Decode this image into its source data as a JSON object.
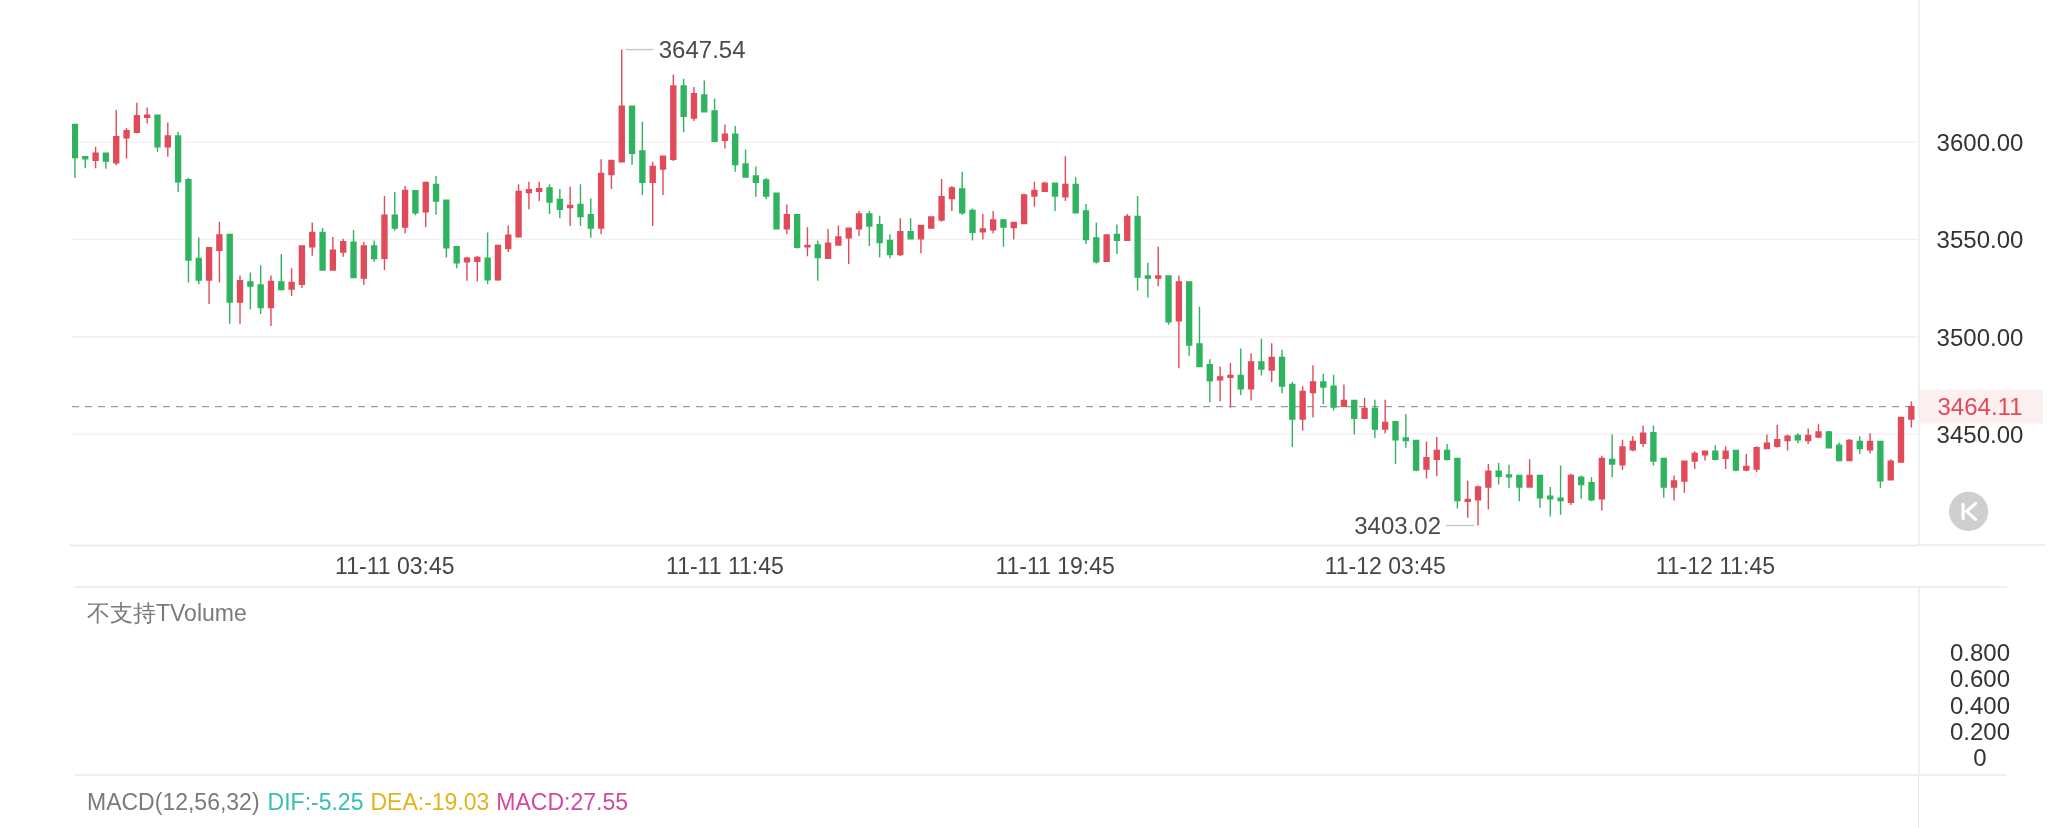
{
  "chart_data": [
    {
      "type": "candlestick",
      "categories": [
        null,
        null,
        null,
        null,
        null,
        null,
        null,
        null,
        null,
        null,
        null,
        null,
        null,
        null,
        null,
        null,
        null,
        null,
        null,
        null,
        null,
        null,
        null,
        null,
        null,
        null,
        null,
        null,
        null,
        null,
        null,
        "11-11 03:45",
        null,
        null,
        null,
        null,
        null,
        null,
        null,
        null,
        null,
        null,
        null,
        null,
        null,
        null,
        null,
        null,
        null,
        null,
        null,
        null,
        null,
        null,
        null,
        null,
        null,
        null,
        null,
        null,
        null,
        null,
        null,
        "11-11 11:45",
        null,
        null,
        null,
        null,
        null,
        null,
        null,
        null,
        null,
        null,
        null,
        null,
        null,
        null,
        null,
        null,
        null,
        null,
        null,
        null,
        null,
        null,
        null,
        null,
        null,
        null,
        null,
        null,
        null,
        null,
        null,
        "11-11 19:45",
        null,
        null,
        null,
        null,
        null,
        null,
        null,
        null,
        null,
        null,
        null,
        null,
        null,
        null,
        null,
        null,
        null,
        null,
        null,
        null,
        null,
        null,
        null,
        null,
        null,
        null,
        null,
        null,
        null,
        null,
        null,
        "11-12 03:45",
        null,
        null,
        null,
        null,
        null,
        null,
        null,
        null,
        null,
        null,
        null,
        null,
        null,
        null,
        null,
        null,
        null,
        null,
        null,
        null,
        null,
        null,
        null,
        null,
        null,
        null,
        null,
        null,
        null,
        null,
        null,
        "11-12 11:45",
        null,
        null,
        null,
        null,
        null,
        null,
        null,
        null,
        null,
        null,
        null,
        null,
        null,
        null,
        null,
        null,
        null,
        null,
        null
      ],
      "ohlc": [
        [
          3609.0,
          3609.0,
          3581.5,
          3592.1
        ],
        [
          3592.5,
          3592.5,
          3586.6,
          3591.4
        ],
        [
          3590.6,
          3597.6,
          3586.6,
          3594.3
        ],
        [
          3594.3,
          3594.3,
          3586.3,
          3590.3
        ],
        [
          3589.4,
          3616.5,
          3588.1,
          3602.8
        ],
        [
          3602.2,
          3607.2,
          3591.6,
          3605.9
        ],
        [
          3605.0,
          3620.2,
          3604.6,
          3613.6
        ],
        [
          3612.7,
          3617.8,
          3609.6,
          3613.8
        ],
        [
          3613.8,
          3613.8,
          3595.1,
          3597.6
        ],
        [
          3597.6,
          3610.1,
          3592.5,
          3603.1
        ],
        [
          3603.1,
          3605.3,
          3574.3,
          3579.6
        ],
        [
          3580.7,
          3581.5,
          3527.9,
          3539.4
        ],
        [
          3540.2,
          3551.0,
          3526.9,
          3529.1
        ],
        [
          3529.1,
          3545.7,
          3516.8,
          3545.7
        ],
        [
          3544.4,
          3559.1,
          3527.9,
          3552.3
        ],
        [
          3552.6,
          3552.6,
          3506.7,
          3517.8
        ],
        [
          3517.8,
          3531.5,
          3506.7,
          3528.8
        ],
        [
          3528.2,
          3533.0,
          3514.1,
          3526.0
        ],
        [
          3526.6,
          3536.7,
          3511.7,
          3515.0
        ],
        [
          3515.0,
          3531.5,
          3505.5,
          3528.4
        ],
        [
          3528.2,
          3542.5,
          3523.8,
          3524.2
        ],
        [
          3524.5,
          3535.2,
          3520.9,
          3527.9
        ],
        [
          3526.9,
          3546.6,
          3525.1,
          3546.6
        ],
        [
          3546.2,
          3558.7,
          3541.6,
          3553.6
        ],
        [
          3553.6,
          3555.8,
          3534.3,
          3534.3
        ],
        [
          3534.3,
          3551.2,
          3534.3,
          3544.4
        ],
        [
          3543.5,
          3550.3,
          3541.1,
          3548.8
        ],
        [
          3548.6,
          3554.8,
          3530.4,
          3530.4
        ],
        [
          3530.1,
          3548.8,
          3526.6,
          3546.6
        ],
        [
          3546.6,
          3549.5,
          3538.5,
          3540.2
        ],
        [
          3540.3,
          3572.3,
          3534.3,
          3562.4
        ],
        [
          3562.4,
          3574.3,
          3554.5,
          3555.9
        ],
        [
          3556.3,
          3577.4,
          3553.2,
          3575.2
        ],
        [
          3575.0,
          3575.0,
          3562.4,
          3563.7
        ],
        [
          3564.2,
          3579.8,
          3556.3,
          3579.3
        ],
        [
          3578.3,
          3582.6,
          3562.7,
          3569.7
        ],
        [
          3570.1,
          3570.1,
          3540.7,
          3545.7
        ],
        [
          3546.2,
          3546.2,
          3535.2,
          3538.0
        ],
        [
          3538.5,
          3541.1,
          3528.8,
          3540.3
        ],
        [
          3538.8,
          3541.5,
          3528.4,
          3540.7
        ],
        [
          3540.3,
          3553.6,
          3526.9,
          3529.3
        ],
        [
          3529.3,
          3547.3,
          3528.8,
          3546.9
        ],
        [
          3545.3,
          3557.2,
          3543.5,
          3552.1
        ],
        [
          3551.3,
          3578.3,
          3551.3,
          3574.7
        ],
        [
          3574.1,
          3579.6,
          3565.5,
          3575.6
        ],
        [
          3574.7,
          3579.6,
          3569.7,
          3576.1
        ],
        [
          3576.5,
          3578.3,
          3563.1,
          3569.2
        ],
        [
          3570.5,
          3575.9,
          3560.9,
          3565.5
        ],
        [
          3566.4,
          3577.1,
          3556.9,
          3567.5
        ],
        [
          3567.9,
          3578.3,
          3556.9,
          3561.8
        ],
        [
          3562.7,
          3571.0,
          3550.8,
          3555.8
        ],
        [
          3555.8,
          3591.2,
          3552.6,
          3583.9
        ],
        [
          3583.3,
          3590.6,
          3575.9,
          3590.6
        ],
        [
          3589.9,
          3647.54,
          3589.9,
          3618.4
        ],
        [
          3618.4,
          3618.4,
          3588.4,
          3594.3
        ],
        [
          3595.4,
          3610.5,
          3572.8,
          3579.3
        ],
        [
          3579.3,
          3589.9,
          3556.9,
          3587.5
        ],
        [
          3586.2,
          3592.7,
          3572.8,
          3592.7
        ],
        [
          3591.2,
          3634.7,
          3590.3,
          3628.8
        ],
        [
          3628.8,
          3632.5,
          3605.0,
          3613.2
        ],
        [
          3612.3,
          3628.3,
          3610.8,
          3624.8
        ],
        [
          3624.2,
          3631.6,
          3615.6,
          3615.6
        ],
        [
          3616.0,
          3622.4,
          3600.4,
          3600.4
        ],
        [
          3600.9,
          3609.0,
          3596.7,
          3604.0
        ],
        [
          3604.0,
          3608.3,
          3584.8,
          3588.4
        ],
        [
          3588.8,
          3596.2,
          3582.0,
          3582.0
        ],
        [
          3582.6,
          3587.5,
          3571.9,
          3579.3
        ],
        [
          3580.5,
          3581.5,
          3570.6,
          3572.3
        ],
        [
          3573.8,
          3573.8,
          3555.4,
          3555.4
        ],
        [
          3555.4,
          3567.9,
          3552.6,
          3562.7
        ],
        [
          3562.7,
          3562.7,
          3545.3,
          3545.9
        ],
        [
          3546.2,
          3556.3,
          3541.3,
          3546.9
        ],
        [
          3547.1,
          3549.5,
          3528.8,
          3540.7
        ],
        [
          3540.3,
          3555.4,
          3540.3,
          3548.1
        ],
        [
          3547.1,
          3557.2,
          3547.1,
          3551.3
        ],
        [
          3550.8,
          3556.1,
          3537.4,
          3555.8
        ],
        [
          3555.4,
          3564.6,
          3551.7,
          3563.1
        ],
        [
          3563.1,
          3564.6,
          3546.6,
          3556.9
        ],
        [
          3557.6,
          3562.2,
          3540.7,
          3548.4
        ],
        [
          3549.5,
          3552.6,
          3540.3,
          3542.2
        ],
        [
          3542.2,
          3560.9,
          3541.5,
          3553.9
        ],
        [
          3553.9,
          3560.9,
          3550.3,
          3550.3
        ],
        [
          3550.3,
          3557.2,
          3542.9,
          3557.2
        ],
        [
          3555.9,
          3561.8,
          3555.9,
          3561.5
        ],
        [
          3560.0,
          3581.1,
          3559.1,
          3571.9
        ],
        [
          3571.0,
          3577.4,
          3564.6,
          3576.5
        ],
        [
          3575.9,
          3584.8,
          3562.7,
          3563.7
        ],
        [
          3564.9,
          3565.9,
          3549.5,
          3553.6
        ],
        [
          3553.9,
          3563.1,
          3549.9,
          3555.4
        ],
        [
          3555.0,
          3564.6,
          3553.2,
          3560.0
        ],
        [
          3560.0,
          3560.5,
          3546.2,
          3556.3
        ],
        [
          3556.1,
          3558.7,
          3549.9,
          3558.7
        ],
        [
          3558.2,
          3573.4,
          3558.2,
          3572.8
        ],
        [
          3572.3,
          3579.6,
          3566.8,
          3575.2
        ],
        [
          3574.7,
          3579.6,
          3574.7,
          3578.9
        ],
        [
          3578.9,
          3578.9,
          3564.6,
          3572.3
        ],
        [
          3571.9,
          3592.7,
          3569.7,
          3578.3
        ],
        [
          3578.3,
          3582.0,
          3563.7,
          3563.7
        ],
        [
          3564.6,
          3568.2,
          3547.7,
          3549.9
        ],
        [
          3550.8,
          3558.7,
          3537.6,
          3538.5
        ],
        [
          3538.8,
          3552.3,
          3538.8,
          3552.3
        ],
        [
          3552.6,
          3557.6,
          3542.5,
          3549.5
        ],
        [
          3549.5,
          3563.1,
          3549.5,
          3561.8
        ],
        [
          3561.8,
          3572.3,
          3523.8,
          3530.6
        ],
        [
          3531.2,
          3538.0,
          3520.1,
          3530.1
        ],
        [
          3530.1,
          3546.2,
          3526.0,
          3531.2
        ],
        [
          3531.2,
          3531.2,
          3506.2,
          3507.7
        ],
        [
          3508.2,
          3531.5,
          3483.8,
          3528.2
        ],
        [
          3528.2,
          3528.2,
          3490.2,
          3495.7
        ],
        [
          3496.3,
          3515.4,
          3484.7,
          3484.7
        ],
        [
          3485.6,
          3488.4,
          3466.4,
          3477.4
        ],
        [
          3477.9,
          3484.7,
          3466.9,
          3479.4
        ],
        [
          3479.2,
          3486.5,
          3463.6,
          3480.1
        ],
        [
          3480.1,
          3493.9,
          3470.0,
          3473.2
        ],
        [
          3473.2,
          3491.5,
          3467.3,
          3487.1
        ],
        [
          3487.1,
          3498.9,
          3480.1,
          3483.4
        ],
        [
          3482.9,
          3496.7,
          3476.8,
          3489.3
        ],
        [
          3489.3,
          3493.3,
          3471.0,
          3474.6
        ],
        [
          3475.5,
          3476.8,
          3443.4,
          3457.7
        ],
        [
          3457.7,
          3474.6,
          3451.7,
          3471.9
        ],
        [
          3471.3,
          3485.3,
          3458.5,
          3476.8
        ],
        [
          3476.8,
          3481.0,
          3465.4,
          3474.2
        ],
        [
          3474.6,
          3480.5,
          3462.1,
          3463.9
        ],
        [
          3464.3,
          3475.5,
          3464.3,
          3467.3
        ],
        [
          3467.3,
          3467.3,
          3449.8,
          3458.1
        ],
        [
          3458.1,
          3468.7,
          3458.1,
          3463.2
        ],
        [
          3463.2,
          3467.6,
          3448.0,
          3452.6
        ],
        [
          3452.6,
          3467.6,
          3450.4,
          3455.9
        ],
        [
          3456.3,
          3456.6,
          3434.6,
          3447.1
        ],
        [
          3448.0,
          3460.3,
          3443.0,
          3446.7
        ],
        [
          3446.7,
          3446.7,
          3430.9,
          3431.5
        ],
        [
          3432.0,
          3446.2,
          3427.2,
          3437.9
        ],
        [
          3437.0,
          3448.5,
          3428.3,
          3441.6
        ],
        [
          3441.6,
          3444.9,
          3436.4,
          3437.0
        ],
        [
          3437.5,
          3437.5,
          3411.8,
          3415.9
        ],
        [
          3415.5,
          3426.0,
          3407.0,
          3416.4
        ],
        [
          3416.2,
          3423.6,
          3403.02,
          3422.8
        ],
        [
          3422.8,
          3434.6,
          3411.3,
          3430.9
        ],
        [
          3430.9,
          3435.1,
          3424.1,
          3428.3
        ],
        [
          3429.0,
          3434.2,
          3422.3,
          3428.1
        ],
        [
          3428.7,
          3429.0,
          3415.5,
          3422.8
        ],
        [
          3422.8,
          3437.0,
          3422.8,
          3428.7
        ],
        [
          3428.7,
          3428.7,
          3412.2,
          3417.3
        ],
        [
          3418.1,
          3422.8,
          3407.6,
          3416.8
        ],
        [
          3417.1,
          3433.9,
          3408.5,
          3415.9
        ],
        [
          3414.9,
          3429.6,
          3413.5,
          3428.7
        ],
        [
          3427.8,
          3428.7,
          3416.8,
          3424.1
        ],
        [
          3425.0,
          3427.8,
          3415.5,
          3416.2
        ],
        [
          3416.8,
          3438.8,
          3410.7,
          3437.5
        ],
        [
          3437.0,
          3449.8,
          3427.8,
          3434.6
        ],
        [
          3434.2,
          3447.1,
          3431.5,
          3443.4
        ],
        [
          3441.9,
          3448.9,
          3441.2,
          3446.2
        ],
        [
          3445.3,
          3454.4,
          3443.4,
          3450.4
        ],
        [
          3450.7,
          3454.4,
          3433.9,
          3436.1
        ],
        [
          3437.5,
          3437.5,
          3417.3,
          3422.8
        ],
        [
          3422.8,
          3428.7,
          3415.9,
          3425.9
        ],
        [
          3425.9,
          3436.1,
          3419.9,
          3436.1
        ],
        [
          3436.1,
          3441.2,
          3432.0,
          3440.0
        ],
        [
          3439.4,
          3441.6,
          3436.4,
          3441.2
        ],
        [
          3441.2,
          3444.3,
          3436.4,
          3437.0
        ],
        [
          3437.5,
          3443.7,
          3432.0,
          3441.2
        ],
        [
          3441.6,
          3441.6,
          3430.9,
          3431.5
        ],
        [
          3431.5,
          3439.7,
          3430.9,
          3433.3
        ],
        [
          3432.0,
          3443.7,
          3430.4,
          3443.0
        ],
        [
          3442.5,
          3449.8,
          3442.5,
          3445.3
        ],
        [
          3443.7,
          3454.8,
          3443.0,
          3447.1
        ],
        [
          3446.7,
          3449.8,
          3441.6,
          3448.9
        ],
        [
          3449.3,
          3450.4,
          3445.3,
          3447.1
        ],
        [
          3446.7,
          3452.9,
          3444.9,
          3449.3
        ],
        [
          3448.5,
          3455.3,
          3448.0,
          3451.1
        ],
        [
          3451.1,
          3451.7,
          3443.0,
          3443.0
        ],
        [
          3444.3,
          3445.6,
          3436.4,
          3436.4
        ],
        [
          3436.4,
          3447.4,
          3436.4,
          3446.7
        ],
        [
          3446.2,
          3448.9,
          3439.7,
          3442.5
        ],
        [
          3441.9,
          3450.4,
          3440.1,
          3446.2
        ],
        [
          3446.2,
          3446.2,
          3422.3,
          3426.0
        ],
        [
          3426.5,
          3437.0,
          3426.5,
          3436.1
        ],
        [
          3435.6,
          3458.5,
          3435.6,
          3458.5
        ],
        [
          3457.7,
          3466.7,
          3453.4,
          3464.11
        ]
      ],
      "colors": [
        "#2fb35f",
        "#2fb35f",
        "#e04b5a",
        "#2fb35f",
        "#e04b5a",
        "#e04b5a",
        "#e04b5a",
        "#e04b5a",
        "#2fb35f",
        "#e04b5a",
        "#2fb35f",
        "#2fb35f",
        "#2fb35f",
        "#e04b5a",
        "#e04b5a",
        "#2fb35f",
        "#e04b5a",
        "#2fb35f",
        "#2fb35f",
        "#e04b5a",
        "#2fb35f",
        "#e04b5a",
        "#e04b5a",
        "#e04b5a",
        "#2fb35f",
        "#e04b5a",
        "#e04b5a",
        "#2fb35f",
        "#e04b5a",
        "#2fb35f",
        "#e04b5a",
        "#2fb35f",
        "#e04b5a",
        "#2fb35f",
        "#e04b5a",
        "#2fb35f",
        "#2fb35f",
        "#2fb35f",
        "#e04b5a",
        "#e04b5a",
        "#2fb35f",
        "#e04b5a",
        "#e04b5a",
        "#e04b5a",
        "#e04b5a",
        "#e04b5a",
        "#2fb35f",
        "#2fb35f",
        "#e04b5a",
        "#2fb35f",
        "#2fb35f",
        "#e04b5a",
        "#e04b5a",
        "#e04b5a",
        "#2fb35f",
        "#2fb35f",
        "#e04b5a",
        "#e04b5a",
        "#e04b5a",
        "#2fb35f",
        "#e04b5a",
        "#2fb35f",
        "#2fb35f",
        "#e04b5a",
        "#2fb35f",
        "#2fb35f",
        "#2fb35f",
        "#2fb35f",
        "#2fb35f",
        "#e04b5a",
        "#2fb35f",
        "#e04b5a",
        "#2fb35f",
        "#e04b5a",
        "#e04b5a",
        "#e04b5a",
        "#e04b5a",
        "#2fb35f",
        "#2fb35f",
        "#2fb35f",
        "#e04b5a",
        "#2fb35f",
        "#e04b5a",
        "#e04b5a",
        "#e04b5a",
        "#e04b5a",
        "#2fb35f",
        "#2fb35f",
        "#e04b5a",
        "#e04b5a",
        "#2fb35f",
        "#e04b5a",
        "#e04b5a",
        "#e04b5a",
        "#e04b5a",
        "#2fb35f",
        "#e04b5a",
        "#2fb35f",
        "#2fb35f",
        "#2fb35f",
        "#e04b5a",
        "#2fb35f",
        "#e04b5a",
        "#2fb35f",
        "#2fb35f",
        "#e04b5a",
        "#2fb35f",
        "#e04b5a",
        "#2fb35f",
        "#2fb35f",
        "#2fb35f",
        "#e04b5a",
        "#e04b5a",
        "#2fb35f",
        "#e04b5a",
        "#2fb35f",
        "#e04b5a",
        "#2fb35f",
        "#2fb35f",
        "#e04b5a",
        "#e04b5a",
        "#2fb35f",
        "#2fb35f",
        "#e04b5a",
        "#2fb35f",
        "#e04b5a",
        "#2fb35f",
        "#e04b5a",
        "#2fb35f",
        "#2fb35f",
        "#2fb35f",
        "#e04b5a",
        "#e04b5a",
        "#2fb35f",
        "#2fb35f",
        "#e04b5a",
        "#e04b5a",
        "#e04b5a",
        "#2fb35f",
        "#2fb35f",
        "#2fb35f",
        "#e04b5a",
        "#2fb35f",
        "#2fb35f",
        "#2fb35f",
        "#e04b5a",
        "#2fb35f",
        "#2fb35f",
        "#e04b5a",
        "#2fb35f",
        "#e04b5a",
        "#e04b5a",
        "#e04b5a",
        "#2fb35f",
        "#2fb35f",
        "#e04b5a",
        "#e04b5a",
        "#e04b5a",
        "#e04b5a",
        "#2fb35f",
        "#e04b5a",
        "#2fb35f",
        "#e04b5a",
        "#e04b5a",
        "#e04b5a",
        "#e04b5a",
        "#e04b5a",
        "#2fb35f",
        "#e04b5a",
        "#e04b5a",
        "#2fb35f",
        "#2fb35f",
        "#e04b5a",
        "#2fb35f",
        "#e04b5a",
        "#2fb35f",
        "#e04b5a",
        "#e04b5a",
        "#e04b5a"
      ],
      "ylim": [
        3393,
        3673
      ],
      "yticks": [
        {
          "value": 3450,
          "label": "3450.00"
        },
        {
          "value": 3500,
          "label": "3500.00"
        },
        {
          "value": 3550,
          "label": "3550.00"
        },
        {
          "value": 3600,
          "label": "3600.00"
        }
      ],
      "grid": "y",
      "ref_lines": [
        {
          "axis": "y",
          "value": 3464.11,
          "label": "3464.11",
          "color": "#9a9a9a",
          "line_style": "dashed"
        }
      ],
      "annotations": [
        "3647.54",
        "3403.02"
      ]
    },
    {
      "type": "bar",
      "title": "不支持TVolume",
      "categories": [
        null,
        null,
        null,
        null,
        null,
        null,
        null,
        null,
        null,
        null,
        null,
        null,
        null,
        null,
        null,
        null,
        null,
        null,
        null,
        null,
        null,
        null,
        null,
        null,
        null,
        null,
        null,
        null,
        null,
        null,
        null,
        null,
        null,
        null,
        null,
        null,
        null,
        null,
        null,
        null,
        null,
        null,
        null,
        null,
        null,
        null,
        null,
        null,
        null,
        null,
        null,
        null,
        null,
        null,
        null,
        null,
        null,
        null,
        null,
        null,
        null,
        null,
        null,
        null,
        null,
        null,
        null,
        null,
        null,
        null,
        null,
        null,
        null,
        null,
        null,
        null,
        null,
        null,
        null,
        null,
        null,
        null,
        null,
        null,
        null,
        null,
        null,
        null,
        null,
        null,
        null,
        null,
        null,
        null,
        null,
        null,
        null,
        null,
        null,
        null,
        null,
        null,
        null,
        null,
        null,
        null,
        null,
        null,
        null,
        null,
        null,
        null,
        null,
        null,
        null,
        null,
        null,
        null,
        null,
        null,
        null,
        null,
        null,
        null,
        null,
        null,
        null,
        null,
        null,
        null,
        null,
        null,
        null,
        null,
        null,
        null,
        null,
        null,
        null,
        null,
        null,
        null,
        null,
        null,
        null,
        null,
        null,
        null,
        null,
        null,
        null,
        null,
        null,
        null,
        null,
        null,
        null,
        null,
        null,
        null,
        null,
        null,
        null,
        null,
        null,
        null,
        null,
        null,
        null,
        null,
        null,
        null,
        null,
        null,
        null,
        null,
        null,
        null,
        null
      ],
      "values": [
        null,
        null,
        null,
        null,
        null,
        null,
        null,
        null,
        null,
        null,
        null,
        null,
        null,
        null,
        null,
        null,
        null,
        null,
        null,
        null,
        null,
        null,
        null,
        null,
        null,
        null,
        null,
        null,
        null,
        null,
        null,
        null,
        null,
        null,
        null,
        null,
        null,
        null,
        null,
        null,
        null,
        null,
        null,
        null,
        null,
        null,
        null,
        null,
        null,
        null,
        null,
        null,
        null,
        null,
        null,
        null,
        null,
        null,
        null,
        null,
        null,
        null,
        null,
        null,
        null,
        null,
        null,
        null,
        null,
        null,
        null,
        null,
        null,
        null,
        null,
        null,
        null,
        null,
        null,
        null,
        null,
        null,
        null,
        null,
        null,
        null,
        null,
        null,
        null,
        null,
        null,
        null,
        null,
        null,
        null,
        null,
        null,
        null,
        null,
        null,
        null,
        null,
        null,
        null,
        null,
        null,
        null,
        null,
        null,
        null,
        null,
        null,
        null,
        null,
        null,
        null,
        null,
        null,
        null,
        null,
        null,
        null,
        null,
        null,
        null,
        null,
        null,
        null,
        null,
        null,
        null,
        null,
        null,
        null,
        null,
        null,
        null,
        null,
        null,
        null,
        null,
        null,
        null,
        null,
        null,
        null,
        null,
        null,
        null,
        null,
        null,
        null,
        null,
        null,
        null,
        null,
        null,
        null,
        null,
        null,
        null,
        null,
        null,
        null,
        null,
        null,
        null,
        null,
        null,
        null,
        null,
        null,
        null,
        null,
        null,
        null,
        null,
        null,
        null
      ],
      "ylim": [
        -0.13,
        1.3
      ],
      "yticks": [
        0,
        {
          "value": 0.2,
          "label": "0.200"
        },
        {
          "value": 0.4,
          "label": "0.400"
        },
        {
          "value": 0.6,
          "label": "0.600"
        },
        {
          "value": 0.8,
          "label": "0.800"
        }
      ],
      "tick_labels": "y"
    },
    {
      "type": "other",
      "title": "MACD(12,56,32)",
      "annotations": [
        "DIF:-5.25",
        "DEA:-19.03",
        "MACD:27.55"
      ],
      "colors": [
        "#35bfae",
        "#e3b21c",
        "#d4489e"
      ]
    }
  ]
}
